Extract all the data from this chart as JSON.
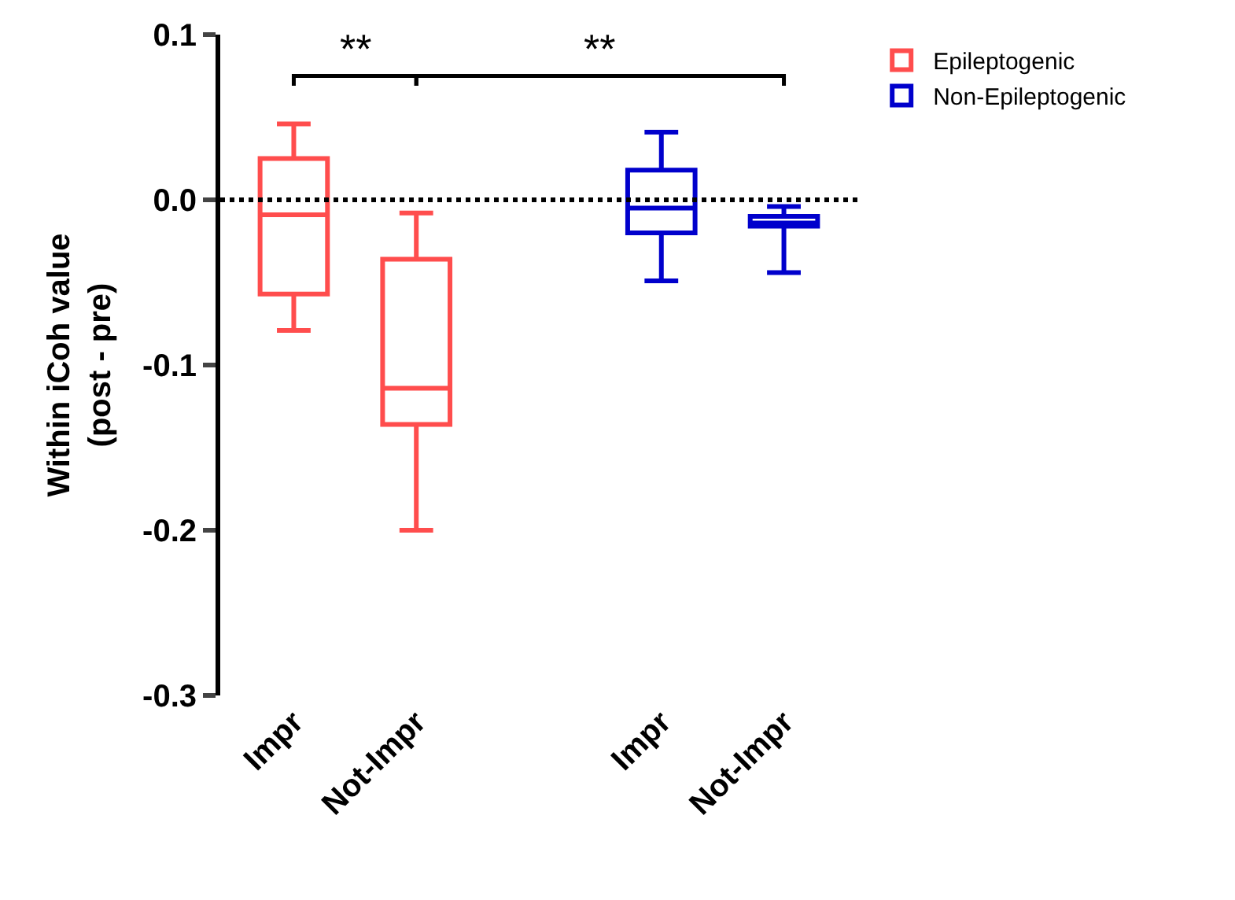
{
  "chart_data": {
    "type": "box",
    "ylabel": "Within iCoh value\n(post - pre)",
    "categories": [
      "Impr",
      "Not-Impr",
      null,
      "Impr",
      "Not-Impr"
    ],
    "series": [
      {
        "name": "Epileptogenic",
        "color": "#ff4d4d",
        "boxes": [
          {
            "low": -0.079,
            "q1": -0.057,
            "median": -0.009,
            "q3": 0.025,
            "high": 0.046
          },
          {
            "low": -0.2,
            "q1": -0.136,
            "median": -0.114,
            "q3": -0.036,
            "high": -0.008
          },
          null,
          null,
          null
        ]
      },
      {
        "name": "Non-Epileptogenic",
        "color": "#0000cc",
        "boxes": [
          null,
          null,
          null,
          {
            "low": -0.049,
            "q1": -0.02,
            "median": -0.005,
            "q3": 0.018,
            "high": 0.041
          },
          {
            "low": -0.044,
            "q1": -0.016,
            "median": -0.014,
            "q3": -0.01,
            "high": -0.004
          }
        ]
      }
    ],
    "ylim": [
      -0.3,
      0.1
    ],
    "yticks": [
      -0.3,
      -0.2,
      -0.1,
      {
        "value": 0,
        "label": "0.0"
      },
      0.1
    ],
    "ref_lines": [
      {
        "axis": "y",
        "value": 0,
        "line_style": "dotted",
        "color": "#000000"
      }
    ],
    "annotations": [
      "**",
      "**"
    ],
    "legend": "top right"
  }
}
